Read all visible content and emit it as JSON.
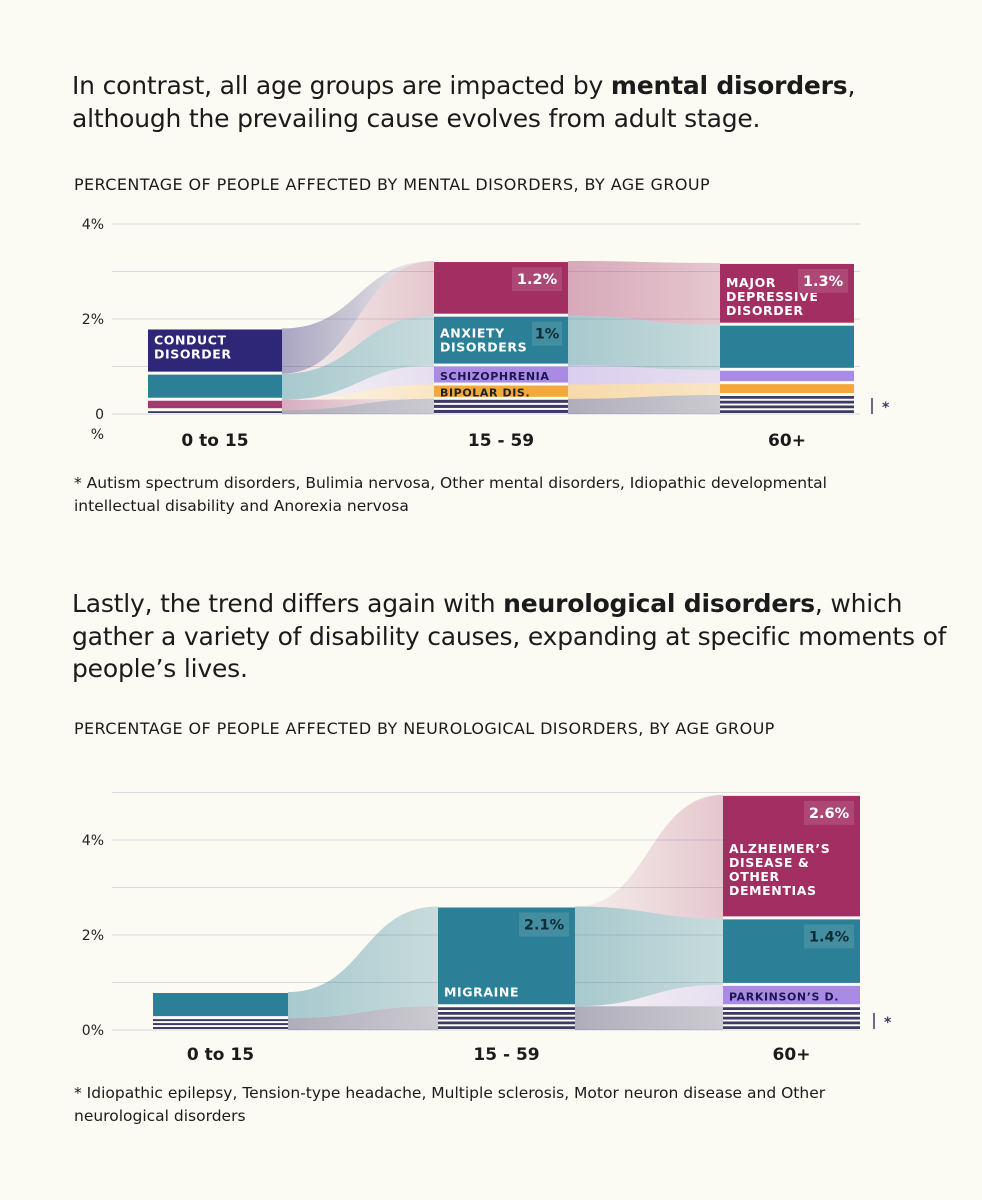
{
  "sections": [
    {
      "headline_prefix": "In contrast, all age groups are impacted by ",
      "headline_bold": "mental disorders",
      "headline_suffix": ", although the prevailing cause evolves from adult stage.",
      "chart_title": "PERCENTAGE OF PEOPLE AFFECTED BY MENTAL DISORDERS, BY AGE GROUP",
      "footnote": "* Autism spectrum disorders, Bulimia nervosa, Other mental disorders, Idiopathic developmental intellectual disability and Anorexia nervosa"
    },
    {
      "headline_prefix": "Lastly, the trend differs again with ",
      "headline_bold": "neurological disorders",
      "headline_suffix": ", which gather a variety of disability causes, expanding at specific moments of people’s lives.",
      "chart_title": "PERCENTAGE OF PEOPLE AFFECTED BY NEUROLOGICAL DISORDERS, BY AGE GROUP",
      "footnote": "* Idiopathic epilepsy, Tension-type headache, Multiple sclerosis, Motor neuron disease and Other neurological disorders"
    }
  ],
  "chart_data": [
    {
      "type": "area",
      "title": "PERCENTAGE OF PEOPLE AFFECTED BY MENTAL DISORDERS, BY AGE GROUP",
      "xlabel": "",
      "ylabel": "%",
      "categories": [
        "0 to 15",
        "15 - 59",
        "60+"
      ],
      "ylim": [
        0,
        4
      ],
      "y_ticks": [
        4,
        2,
        0
      ],
      "y_tick_labels": [
        "4%",
        "2%",
        "0"
      ],
      "y_unit_label": "%",
      "other_marker": "*",
      "series": [
        {
          "name": "Others",
          "color": "#3d3a66",
          "values": [
            0.08,
            0.32,
            0.4
          ],
          "others": true
        },
        {
          "name": "Conduct disorder",
          "color": "#a03a6f",
          "values": [
            0.22,
            0.0,
            0.0
          ]
        },
        {
          "name": "Bipolar dis.",
          "color": "#f2a83a",
          "values": [
            0.0,
            0.3,
            0.25
          ],
          "label": "BIPOLAR DIS.",
          "label_col": 1,
          "label_color": "#222222"
        },
        {
          "name": "Schizophrenia",
          "color": "#a98be6",
          "values": [
            0.0,
            0.4,
            0.28
          ],
          "label": "SCHIZOPHRENIA",
          "label_col": 1,
          "label_color": "#1c1650"
        },
        {
          "name": "Anxiety disorders",
          "color": "#2b7f96",
          "values": [
            0.55,
            1.05,
            0.95
          ],
          "label": "ANXIETY\nDISORDERS",
          "label_col": 1,
          "label_color": "#ffffff",
          "value_label": "1%",
          "value_label_col": 1
        },
        {
          "name": "Major depressive disorder",
          "color": "#a22e62",
          "values": [
            0.0,
            1.15,
            1.3
          ],
          "label": "MAJOR\nDEPRESSIVE\nDISORDER",
          "label_col": 2,
          "label_color": "#ffffff",
          "value_label": "1.2%",
          "value_label_col": 1,
          "value_label_2": "1.3%",
          "value_label_2_col": 2
        },
        {
          "name": "Conduct disorder (label)",
          "color": "#2e2677",
          "values": [
            0.95,
            0.0,
            0.0
          ],
          "label": "CONDUCT\nDISORDER",
          "label_col": 0,
          "label_color": "#ffffff"
        }
      ]
    },
    {
      "type": "area",
      "title": "PERCENTAGE OF PEOPLE AFFECTED BY NEUROLOGICAL DISORDERS, BY AGE GROUP",
      "xlabel": "",
      "ylabel": "",
      "categories": [
        "0 to 15",
        "15 - 59",
        "60+"
      ],
      "ylim": [
        0,
        5
      ],
      "y_ticks": [
        4,
        2,
        0
      ],
      "y_tick_labels": [
        "4%",
        "2%",
        "0%"
      ],
      "other_marker": "*",
      "series": [
        {
          "name": "Others",
          "color": "#3d3a66",
          "values": [
            0.25,
            0.5,
            0.5
          ],
          "others": true
        },
        {
          "name": "Parkinson's d.",
          "color": "#a98be6",
          "values": [
            0.0,
            0.0,
            0.45
          ],
          "label": "PARKINSON’S D.",
          "label_col": 2,
          "label_color": "#1c1650"
        },
        {
          "name": "Migraine",
          "color": "#2b7f96",
          "values": [
            0.55,
            2.1,
            1.4
          ],
          "label": "MIGRAINE",
          "label_col": 1,
          "label_color": "#ffffff",
          "value_label": "2.1%",
          "value_label_col": 1,
          "value_label_2": "1.4%",
          "value_label_2_col": 2
        },
        {
          "name": "Alzheimer's disease & other dementias",
          "color": "#a22e62",
          "values": [
            0.0,
            0.0,
            2.6
          ],
          "label": "ALZHEIMER’S\nDISEASE &\nOTHER\nDEMENTIAS",
          "label_col": 2,
          "label_color": "#ffffff",
          "value_label": "2.6%",
          "value_label_col": 2
        }
      ]
    }
  ]
}
